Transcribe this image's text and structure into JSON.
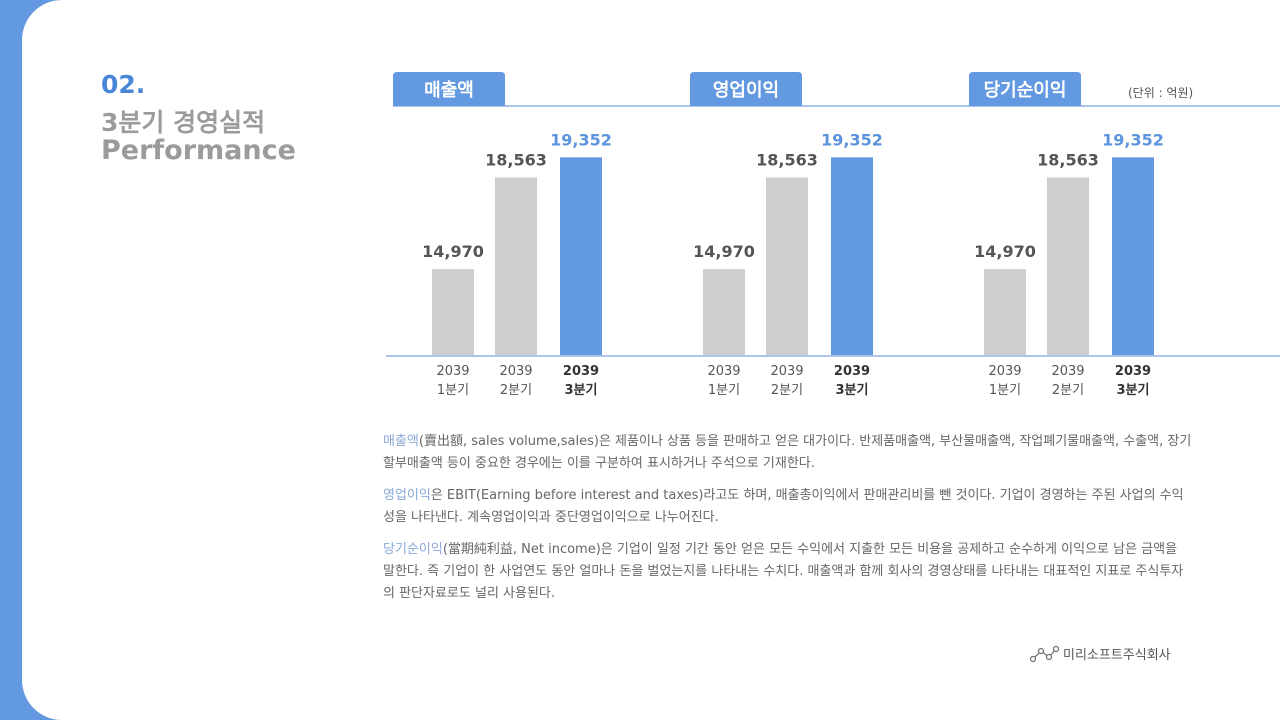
{
  "header": {
    "number": "02.",
    "title": "3분기 경영실적",
    "subtitle": "Performance"
  },
  "unit": "(단위 : 억원)",
  "chart_data": [
    {
      "type": "bar",
      "title": "매출액",
      "categories": [
        "2039\n1분기",
        "2039\n2분기",
        "2039\n3분기"
      ],
      "values": [
        14970,
        18563,
        19352
      ],
      "value_labels": [
        "14,970",
        "18,563",
        "19,352"
      ],
      "colors": [
        "#cfcdd0",
        "#cfcdd0",
        "#6399e0"
      ],
      "highlight": 2,
      "ylim": [
        11600,
        21600
      ]
    },
    {
      "type": "bar",
      "title": "영업이익",
      "categories": [
        "2039\n1분기",
        "2039\n2분기",
        "2039\n3분기"
      ],
      "values": [
        14970,
        18563,
        19352
      ],
      "value_labels": [
        "14,970",
        "18,563",
        "19,352"
      ],
      "colors": [
        "#cfcdd0",
        "#cfcdd0",
        "#6399e0"
      ],
      "highlight": 2,
      "ylim": [
        11600,
        21600
      ]
    },
    {
      "type": "bar",
      "title": "당기순이익",
      "categories": [
        "2039\n1분기",
        "2039\n2분기",
        "2039\n3분기"
      ],
      "values": [
        14970,
        18563,
        19352
      ],
      "value_labels": [
        "14,970",
        "18,563",
        "19,352"
      ],
      "colors": [
        "#cfcdd0",
        "#cfcdd0",
        "#6399e0"
      ],
      "highlight": 2,
      "ylim": [
        11600,
        21600
      ]
    }
  ],
  "notes": [
    {
      "term": "매출액",
      "text": "(賣出額, sales volume,sales)은 제품이나 상품 등을 판매하고 얻은 대가이다. 반제품매출액, 부산물매출액, 작업폐기물매출액, 수출액, 장기할부매출액 등이 중요한 경우에는 이를 구분하여 표시하거나 주석으로 기재한다."
    },
    {
      "term": "영업이익",
      "text": "은 EBIT(Earning before interest and taxes)라고도 하며, 매출총이익에서 판매관리비를 뺀 것이다. 기업이 경영하는 주된 사업의 수익성을 나타낸다. 계속영업이익과 중단영업이익으로 나누어진다."
    },
    {
      "term": "당기순이익",
      "text": "(當期純利益,  Net income)은 기업이 일정 기간 동안 얻은 모든 수익에서 지출한 모든 비용을 공제하고 순수하게 이익으로 남은 금액을 말한다. 즉 기업이 한 사업연도 동안 얼마나 돈을 벌었는지를 나타내는 수치다. 매출액과 함께 회사의 경영상태를 나타내는 대표적인 지표로 주식투자의 판단자료로도 널리 사용된다."
    }
  ],
  "footer": "미리소프트주식회사"
}
